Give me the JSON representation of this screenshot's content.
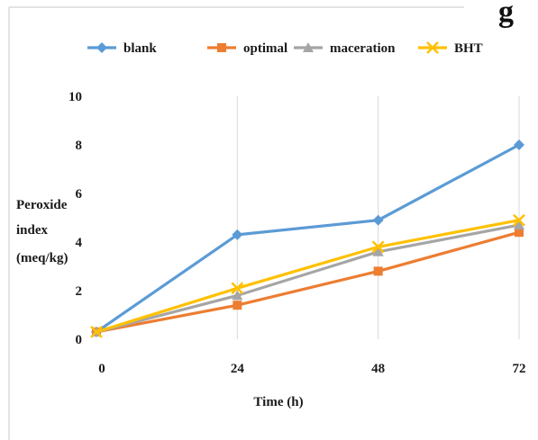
{
  "corner_text": "g",
  "chart_data": {
    "type": "line",
    "x": [
      0,
      24,
      48,
      72
    ],
    "xlabel": "Time (h)",
    "ylabel": [
      "Peroxide",
      "index",
      "(meq/kg)"
    ],
    "xlim": [
      0,
      72
    ],
    "ylim": [
      0,
      10
    ],
    "yticks": [
      0,
      2,
      4,
      6,
      8,
      10
    ],
    "xticks": [
      0,
      24,
      48,
      72
    ],
    "grid": "vertical",
    "legend_position": "top",
    "series": [
      {
        "name": "blank",
        "color": "#5b9bd5",
        "marker": "diamond",
        "values": [
          0.3,
          4.3,
          4.9,
          8.0
        ]
      },
      {
        "name": "optimal",
        "color": "#ed7d31",
        "marker": "square",
        "values": [
          0.3,
          1.4,
          2.8,
          4.4
        ]
      },
      {
        "name": "maceration",
        "color": "#a5a5a5",
        "marker": "triangle",
        "values": [
          0.3,
          1.8,
          3.6,
          4.7
        ]
      },
      {
        "name": "BHT",
        "color": "#ffc000",
        "marker": "x",
        "values": [
          0.3,
          2.1,
          3.8,
          4.9
        ]
      }
    ]
  }
}
